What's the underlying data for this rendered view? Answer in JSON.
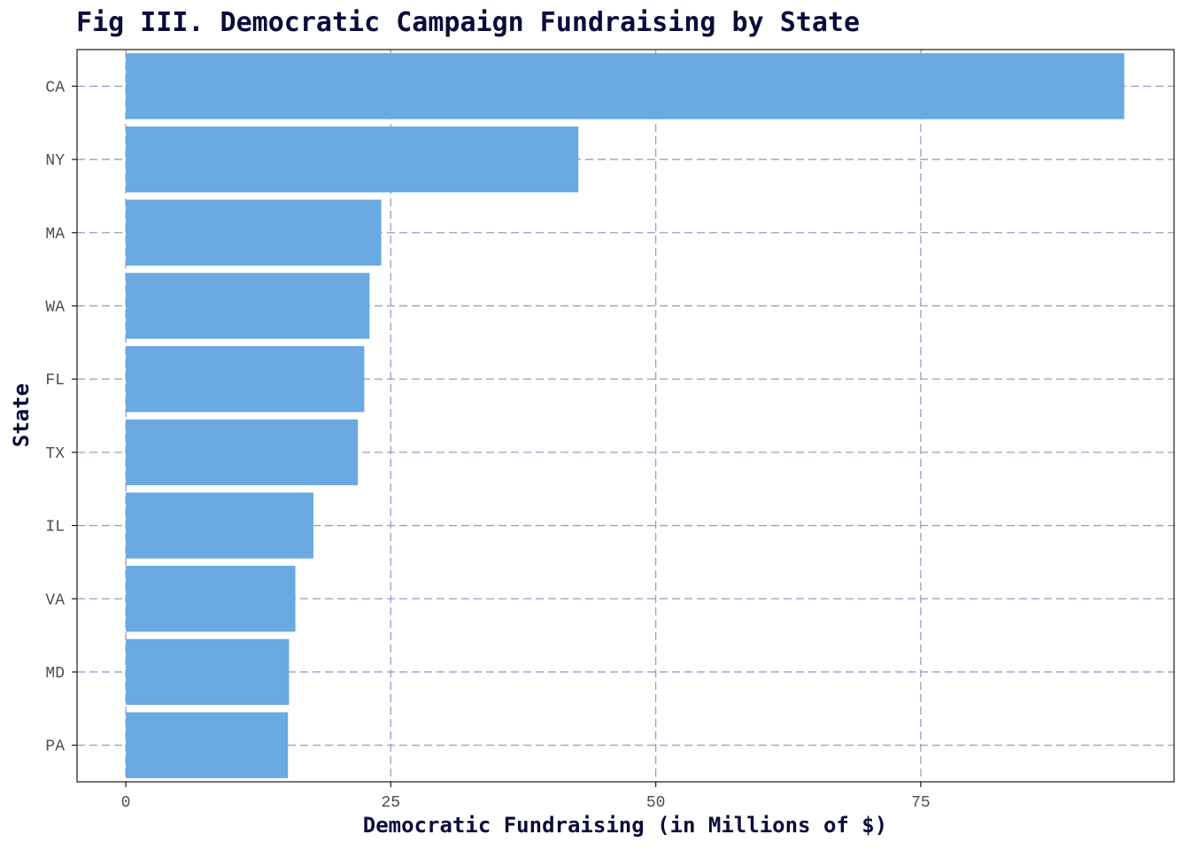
{
  "chart_data": {
    "type": "bar",
    "orientation": "horizontal",
    "title": "Fig III. Democratic Campaign Fundraising by State",
    "xlabel": "Democratic Fundraising (in Millions of $)",
    "ylabel": "State",
    "categories": [
      "CA",
      "NY",
      "MA",
      "WA",
      "FL",
      "TX",
      "IL",
      "VA",
      "MD",
      "PA"
    ],
    "values": [
      94.2,
      42.7,
      24.1,
      23.0,
      22.5,
      21.9,
      17.7,
      16.0,
      15.4,
      15.3
    ],
    "xticks": [
      0,
      25,
      50,
      75
    ],
    "xtick_labels": [
      "0",
      "25",
      "50",
      "75"
    ],
    "xlim": [
      -4.6,
      98.9
    ],
    "grid": true,
    "colors": {
      "bar": "#6aa9e2",
      "grid": "#9e9ac8",
      "title": "#0b0b3b"
    }
  }
}
